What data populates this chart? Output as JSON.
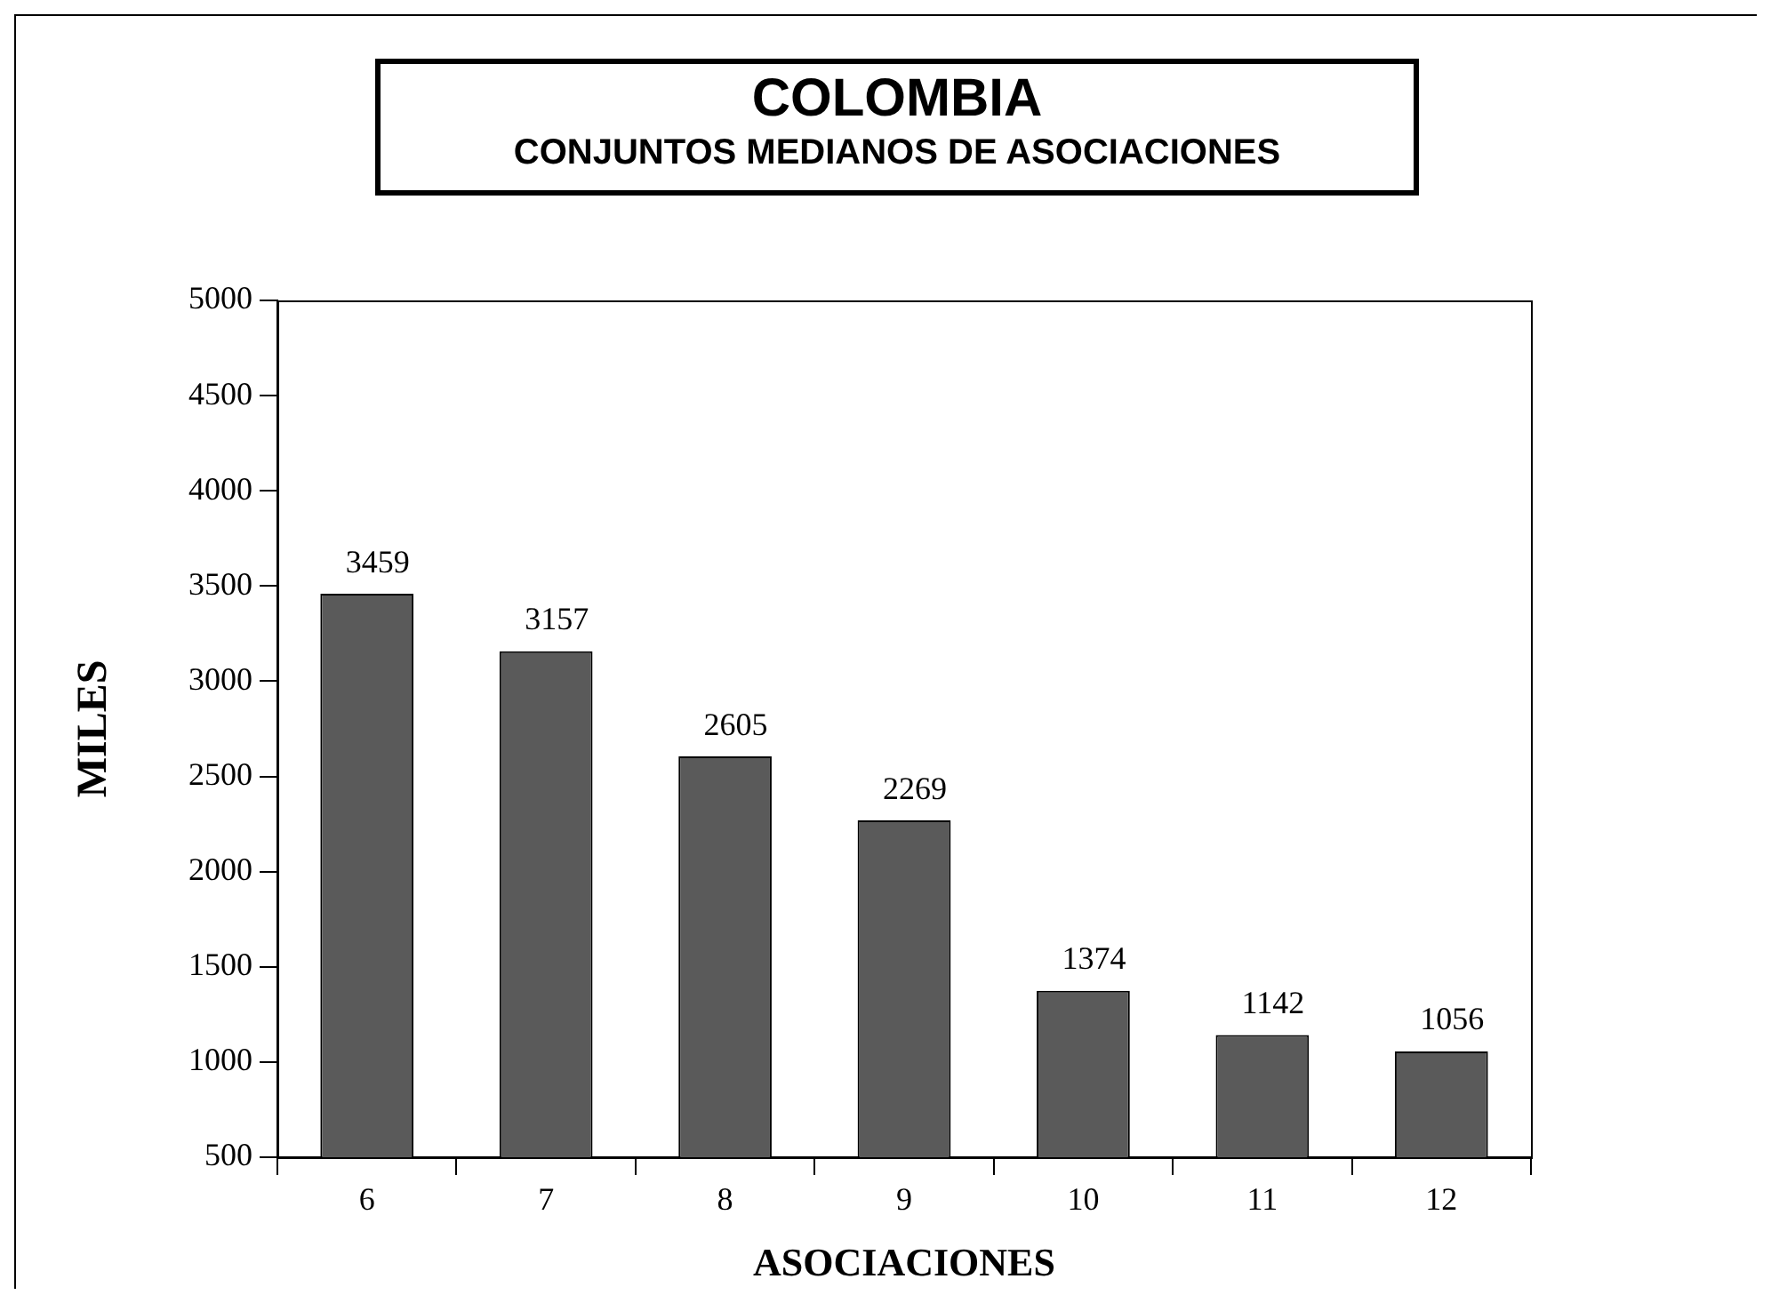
{
  "chart_data": {
    "type": "bar",
    "title": "COLOMBIA",
    "subtitle": "CONJUNTOS MEDIANOS DE ASOCIACIONES",
    "xlabel": "ASOCIACIONES",
    "ylabel": "MILES",
    "categories": [
      "6",
      "7",
      "8",
      "9",
      "10",
      "11",
      "12"
    ],
    "values": [
      3459,
      3157,
      2605,
      2269,
      1374,
      1142,
      1056
    ],
    "color": "#5a5a5a",
    "ylim": [
      500,
      5000
    ],
    "yticks": [
      500,
      1000,
      1500,
      2000,
      2500,
      3000,
      3500,
      4000,
      4500,
      5000
    ],
    "data_labels": true
  }
}
